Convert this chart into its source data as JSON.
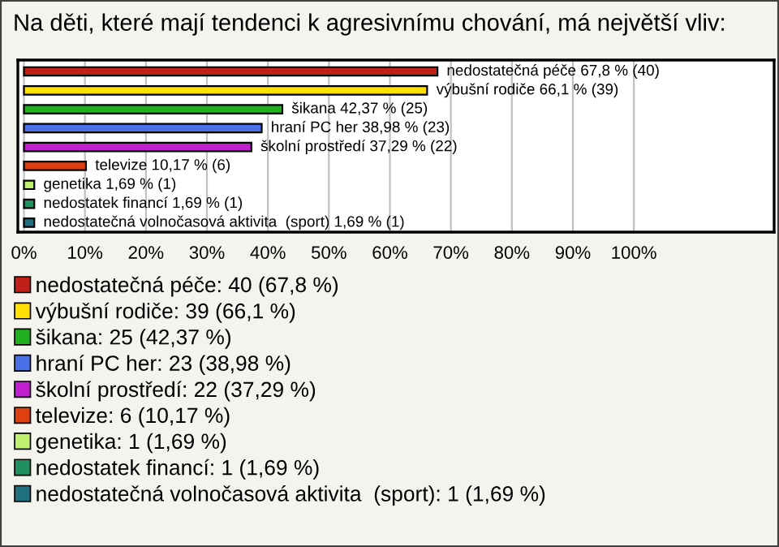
{
  "chart_data": {
    "type": "bar",
    "orientation": "horizontal",
    "title": "Na děti, které mají tendenci k agresivnímu chování, má největší vliv:",
    "categories": [
      null,
      null,
      null,
      null,
      null,
      null,
      null,
      null,
      null
    ],
    "xlim": [
      -1,
      123
    ],
    "xticks": [
      {
        "value": 0,
        "label": "0%"
      },
      {
        "value": 10,
        "label": "10%"
      },
      {
        "value": 20,
        "label": "20%"
      },
      {
        "value": 30,
        "label": "30%"
      },
      {
        "value": 40,
        "label": "40%"
      },
      {
        "value": 50,
        "label": "50%"
      },
      {
        "value": 60,
        "label": "60%"
      },
      {
        "value": 70,
        "label": "70%"
      },
      {
        "value": 80,
        "label": "80%"
      },
      {
        "value": 90,
        "label": "90%"
      },
      {
        "value": 100,
        "label": "100%"
      }
    ],
    "grid": "x",
    "legend": "bottom",
    "series": [
      {
        "name": "nedostatečná péče: 40 (67,8 %)",
        "color": "#c02018",
        "values": [
          67.8,
          null,
          null,
          null,
          null,
          null,
          null,
          null,
          null
        ],
        "value_labels": [
          "nedostatečná péče 67,8 % (40)",
          null,
          null,
          null,
          null,
          null,
          null,
          null,
          null
        ]
      },
      {
        "name": "výbušní rodiče: 39 (66,1 %)",
        "color": "#ffe000",
        "values": [
          null,
          66.1,
          null,
          null,
          null,
          null,
          null,
          null,
          null
        ],
        "value_labels": [
          null,
          "výbušní rodiče 66,1 % (39)",
          null,
          null,
          null,
          null,
          null,
          null,
          null
        ]
      },
      {
        "name": "šikana: 25 (42,37 %)",
        "color": "#20b020",
        "values": [
          null,
          null,
          42.37,
          null,
          null,
          null,
          null,
          null,
          null
        ],
        "value_labels": [
          null,
          null,
          "šikana 42,37 % (25)",
          null,
          null,
          null,
          null,
          null,
          null
        ]
      },
      {
        "name": "hraní PC her: 23 (38,98 %)",
        "color": "#4a70e8",
        "values": [
          null,
          null,
          null,
          38.98,
          null,
          null,
          null,
          null,
          null
        ],
        "value_labels": [
          null,
          null,
          null,
          "hraní PC her 38,98 % (23)",
          null,
          null,
          null,
          null,
          null
        ]
      },
      {
        "name": "školní prostředí: 22 (37,29 %)",
        "color": "#c020d0",
        "values": [
          null,
          null,
          null,
          null,
          37.29,
          null,
          null,
          null,
          null
        ],
        "value_labels": [
          null,
          null,
          null,
          null,
          "školní prostředí 37,29 % (22)",
          null,
          null,
          null,
          null
        ]
      },
      {
        "name": "televize: 6 (10,17 %)",
        "color": "#e04010",
        "values": [
          null,
          null,
          null,
          null,
          null,
          10.17,
          null,
          null,
          null
        ],
        "value_labels": [
          null,
          null,
          null,
          null,
          null,
          "televize 10,17 % (6)",
          null,
          null,
          null
        ]
      },
      {
        "name": "genetika: 1 (1,69 %)",
        "color": "#c0f070",
        "values": [
          null,
          null,
          null,
          null,
          null,
          null,
          1.69,
          null,
          null
        ],
        "value_labels": [
          null,
          null,
          null,
          null,
          null,
          null,
          "genetika 1,69 % (1)",
          null,
          null
        ]
      },
      {
        "name": "nedostatek financí: 1 (1,69 %)",
        "color": "#209060",
        "values": [
          null,
          null,
          null,
          null,
          null,
          null,
          null,
          1.69,
          null
        ],
        "value_labels": [
          null,
          null,
          null,
          null,
          null,
          null,
          null,
          "nedostatek financí 1,69 % (1)",
          null
        ]
      },
      {
        "name": "nedostatečná volnočasová aktivita  (sport): 1 (1,69 %)",
        "color": "#207080",
        "values": [
          null,
          null,
          null,
          null,
          null,
          null,
          null,
          null,
          1.69
        ],
        "value_labels": [
          null,
          null,
          null,
          null,
          null,
          null,
          null,
          null,
          "nedostatečná volnočasová aktivita  (sport) 1,69 % (1)"
        ]
      }
    ]
  }
}
